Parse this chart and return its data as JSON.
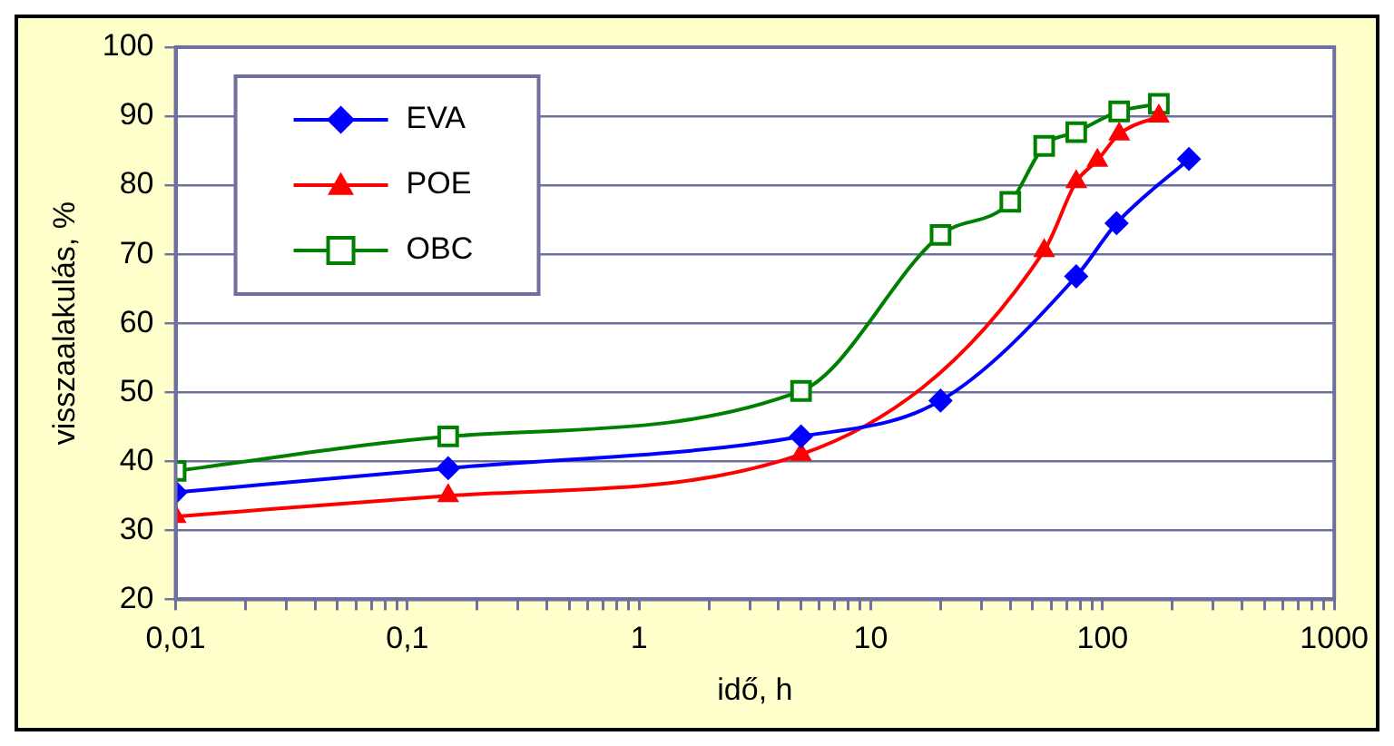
{
  "chart_data": {
    "type": "line",
    "xlabel": "idő, h",
    "ylabel": "visszaalakulás, %",
    "log": "x",
    "grid": "y",
    "legend": "top left",
    "xlim": [
      0.01,
      1000
    ],
    "ylim": [
      20,
      100
    ],
    "xticks": [
      {
        "value": 0.01,
        "label": "0,01"
      },
      {
        "value": 0.02,
        "label": null
      },
      {
        "value": 0.03,
        "label": null
      },
      {
        "value": 0.04,
        "label": null
      },
      {
        "value": 0.05,
        "label": null
      },
      {
        "value": 0.06,
        "label": null
      },
      {
        "value": 0.07,
        "label": null
      },
      {
        "value": 0.08,
        "label": null
      },
      {
        "value": 0.09,
        "label": null
      },
      {
        "value": 0.1,
        "label": "0,1"
      },
      {
        "value": 0.2,
        "label": null
      },
      {
        "value": 0.3,
        "label": null
      },
      {
        "value": 0.4,
        "label": null
      },
      {
        "value": 0.5,
        "label": null
      },
      {
        "value": 0.6,
        "label": null
      },
      {
        "value": 0.7,
        "label": null
      },
      {
        "value": 0.8,
        "label": null
      },
      {
        "value": 0.9,
        "label": null
      },
      1,
      {
        "value": 2,
        "label": null
      },
      {
        "value": 3,
        "label": null
      },
      {
        "value": 4,
        "label": null
      },
      {
        "value": 5,
        "label": null
      },
      {
        "value": 6,
        "label": null
      },
      {
        "value": 7,
        "label": null
      },
      {
        "value": 8,
        "label": null
      },
      {
        "value": 9,
        "label": null
      },
      10,
      {
        "value": 20,
        "label": null
      },
      {
        "value": 30,
        "label": null
      },
      {
        "value": 40,
        "label": null
      },
      {
        "value": 50,
        "label": null
      },
      {
        "value": 60,
        "label": null
      },
      {
        "value": 70,
        "label": null
      },
      {
        "value": 80,
        "label": null
      },
      {
        "value": 90,
        "label": null
      },
      100,
      {
        "value": 200,
        "label": null
      },
      {
        "value": 300,
        "label": null
      },
      {
        "value": 400,
        "label": null
      },
      {
        "value": 500,
        "label": null
      },
      {
        "value": 600,
        "label": null
      },
      {
        "value": 700,
        "label": null
      },
      {
        "value": 800,
        "label": null
      },
      {
        "value": 900,
        "label": null
      },
      1000
    ],
    "yticks": [
      20,
      30,
      40,
      50,
      60,
      70,
      80,
      90,
      100
    ],
    "series": [
      {
        "name": "EVA",
        "color": "#0000ff",
        "marker": "diamond",
        "x": [
          0.01,
          0.15,
          5,
          20,
          77,
          115,
          236
        ],
        "values": [
          35.5,
          39,
          43.6,
          48.8,
          66.8,
          74.5,
          83.8
        ]
      },
      {
        "name": "POE",
        "color": "#ff0000",
        "marker": "triangle",
        "x": [
          0.01,
          0.15,
          5,
          56,
          77,
          95,
          118,
          175
        ],
        "values": [
          32,
          35,
          41,
          70.5,
          80.5,
          83.6,
          87.4,
          90
        ]
      },
      {
        "name": "OBC",
        "color": "#008000",
        "marker": "square",
        "x": [
          0.01,
          0.15,
          5,
          20,
          40,
          56,
          77,
          118,
          175
        ],
        "values": [
          38.6,
          43.6,
          50.2,
          72.8,
          77.6,
          85.7,
          87.7,
          90.7,
          91.8
        ]
      }
    ]
  }
}
